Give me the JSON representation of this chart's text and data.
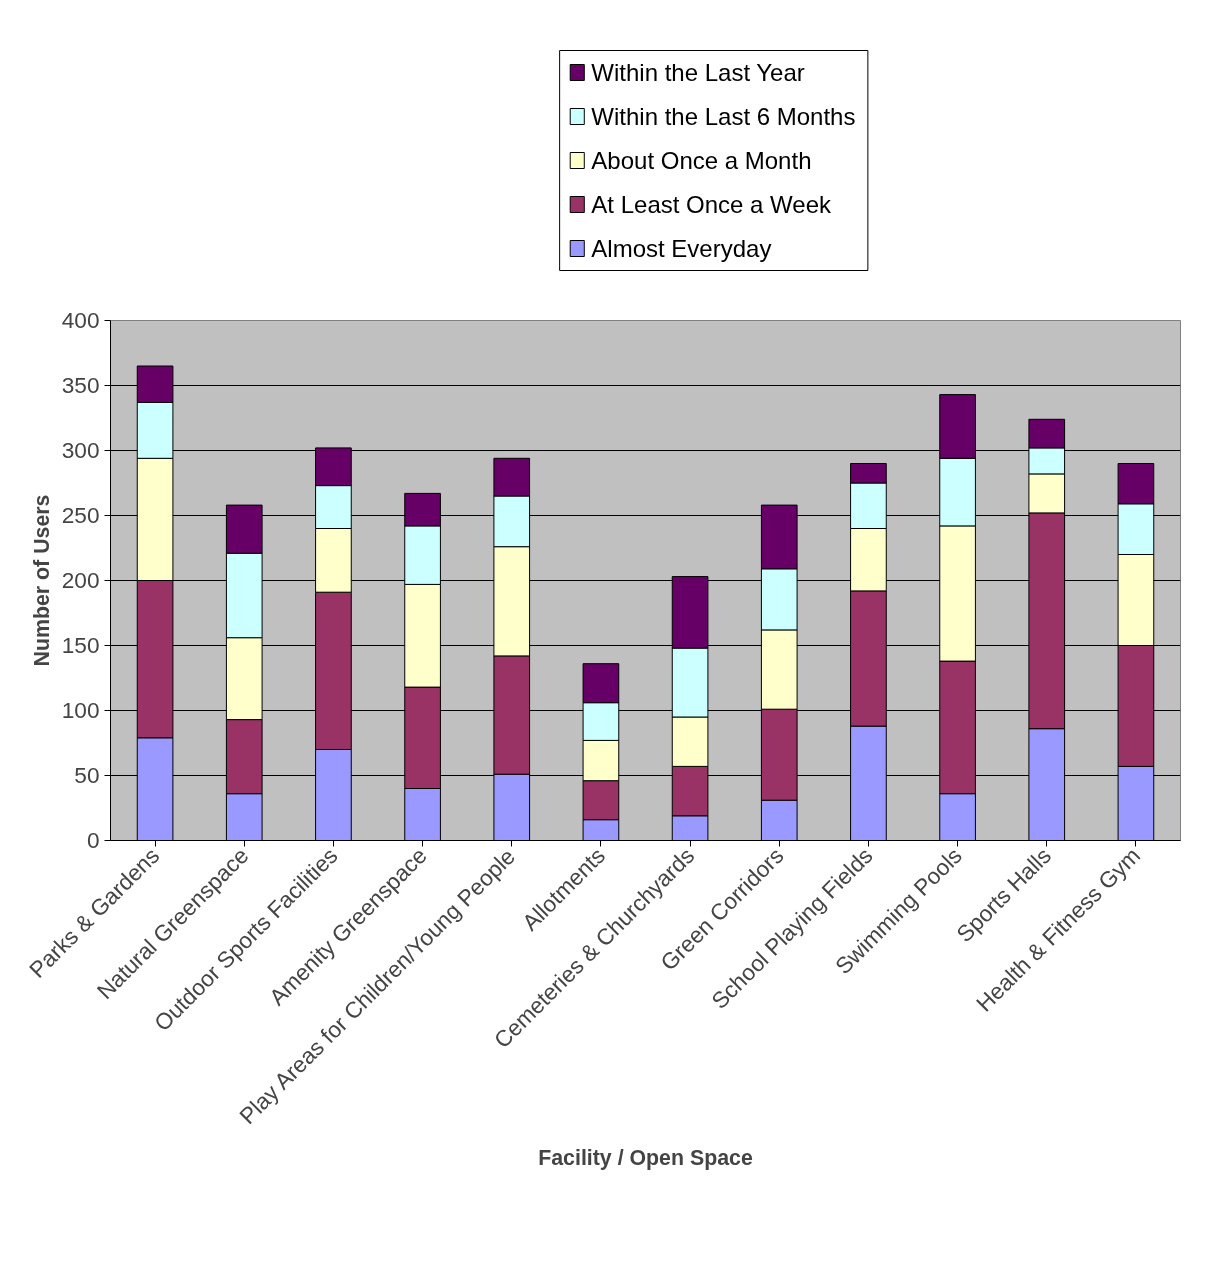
{
  "chart_data": {
    "type": "bar",
    "stacked": true,
    "xlabel": "Facility / Open Space",
    "ylabel": "Number of Users",
    "categories": [
      "Parks & Gardens",
      "Natural Greenspace",
      "Outdoor Sports Facilities",
      "Amenity Greenspace",
      "Play Areas for Children/Young People",
      "Allotments",
      "Cemeteries & Churchyards",
      "Green Corridors",
      "School Playing Fields",
      "Swimming Pools",
      "Sports Halls",
      "Health & Fitness Gym"
    ],
    "series": [
      {
        "name": "Almost Everyday",
        "color": "#9999ff",
        "values": [
          79,
          36,
          70,
          40,
          51,
          16,
          19,
          31,
          88,
          36,
          86,
          57
        ]
      },
      {
        "name": "At Least Once a Week",
        "color": "#993366",
        "values": [
          121,
          57,
          121,
          78,
          91,
          30,
          38,
          70,
          104,
          102,
          166,
          93
        ]
      },
      {
        "name": "About Once a Month",
        "color": "#ffffcc",
        "values": [
          94,
          63,
          49,
          79,
          84,
          31,
          38,
          61,
          48,
          104,
          30,
          70
        ]
      },
      {
        "name": "Within the Last 6 Months",
        "color": "#ccffff",
        "values": [
          43,
          65,
          33,
          45,
          39,
          29,
          53,
          47,
          35,
          52,
          20,
          39
        ]
      },
      {
        "name": "Within the Last Year",
        "color": "#660066",
        "values": [
          28,
          37,
          29,
          25,
          29,
          30,
          55,
          49,
          15,
          49,
          22,
          31
        ]
      }
    ],
    "ylim": [
      0,
      400
    ],
    "yticks": [
      0,
      50,
      100,
      150,
      200,
      250,
      300,
      350,
      400
    ],
    "grid": "y",
    "legend": "top"
  }
}
